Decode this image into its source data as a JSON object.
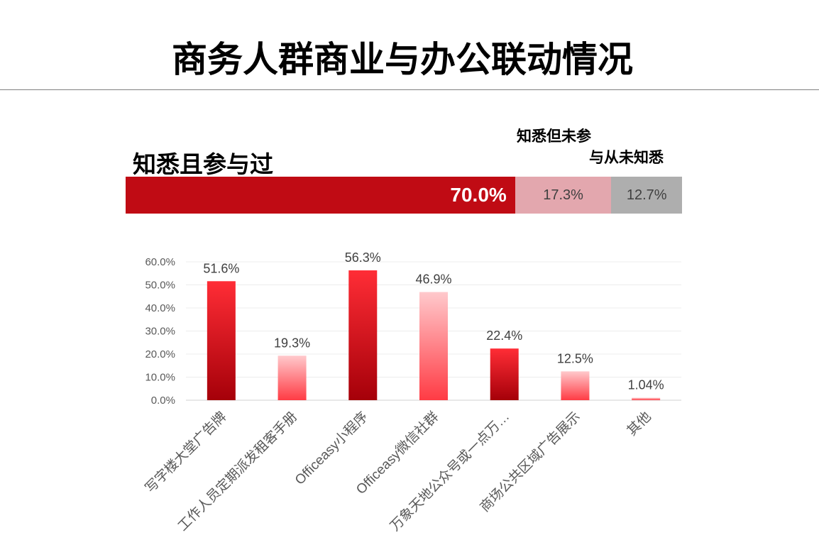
{
  "title": "商务人群商业与办公联动情况",
  "awareness": {
    "label_participated": "知悉且参与过",
    "label_other_line1": "知悉但未参",
    "label_other_line2": "与从未知悉",
    "segments": [
      {
        "value": 70.0,
        "label": "70.0%",
        "color": "#c00b14"
      },
      {
        "value": 17.3,
        "label": "17.3%",
        "color": "#e3a7ae"
      },
      {
        "value": 12.7,
        "label": "12.7%",
        "color": "#aeaeae"
      }
    ]
  },
  "chart_data": {
    "type": "bar",
    "categories": [
      "写字楼大堂广告牌",
      "工作人员定期派发租客手册",
      "Officeasy小程序",
      "Officeasy微信社群",
      "万象天地公众号或一点万…",
      "商场公共区域广告展示",
      "其他"
    ],
    "values": [
      51.6,
      19.3,
      56.3,
      46.9,
      22.4,
      12.5,
      1.04
    ],
    "value_labels": [
      "51.6%",
      "19.3%",
      "56.3%",
      "46.9%",
      "22.4%",
      "12.5%",
      "1.04%"
    ],
    "bar_styles": [
      "dark",
      "light",
      "dark",
      "light",
      "dark",
      "light",
      "light"
    ],
    "yticks": [
      "0.0%",
      "10.0%",
      "20.0%",
      "30.0%",
      "40.0%",
      "50.0%",
      "60.0%"
    ],
    "ylim": [
      0,
      60
    ],
    "grid": true,
    "colors": {
      "dark_top": "#ff2d36",
      "dark_bottom": "#a50009",
      "light_top": "#ffc9cc",
      "light_bottom": "#ff3b44"
    }
  }
}
